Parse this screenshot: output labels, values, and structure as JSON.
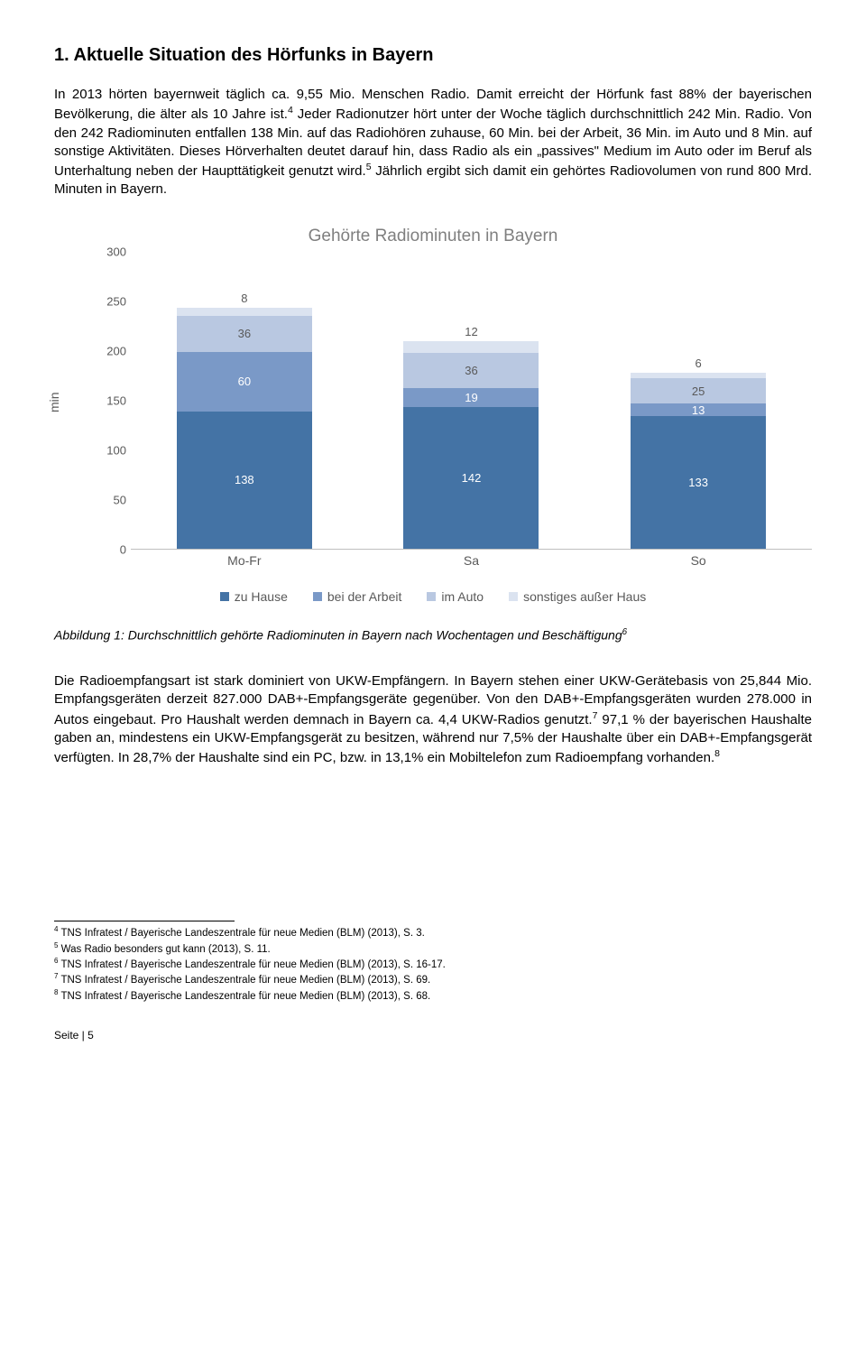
{
  "heading": "1.   Aktuelle Situation des Hörfunks in Bayern",
  "para1": "In 2013 hörten bayernweit täglich ca. 9,55 Mio. Menschen Radio. Damit erreicht der Hörfunk fast 88% der bayerischen Bevölkerung, die älter als 10 Jahre ist.4 Jeder Radionutzer hört unter der Woche täglich durchschnittlich 242 Min. Radio. Von den 242 Radiominuten entfallen 138 Min. auf das Radiohören zuhause, 60 Min. bei der Arbeit, 36 Min. im Auto und 8 Min. auf sonstige Aktivitäten. Dieses Hörverhalten deutet darauf hin, dass Radio als ein „passives\" Medium im Auto oder im Beruf als Unterhaltung neben der Haupttätigkeit genutzt wird.5 Jährlich ergibt sich damit ein gehörtes Radiovolumen von rund 800 Mrd. Minuten in Bayern.",
  "chart": {
    "title": "Gehörte Radiominuten in Bayern",
    "ylabel": "min",
    "ymax": 300,
    "ytick_step": 50,
    "yticks": [
      "0",
      "50",
      "100",
      "150",
      "200",
      "250",
      "300"
    ],
    "categories": [
      "Mo-Fr",
      "Sa",
      "So"
    ],
    "series": [
      {
        "name": "zu Hause",
        "color": "#4473a5"
      },
      {
        "name": "bei der Arbeit",
        "color": "#7a99c7"
      },
      {
        "name": "im Auto",
        "color": "#b9c8e1"
      },
      {
        "name": "sonstiges außer Haus",
        "color": "#dbe3f0"
      }
    ],
    "stacks": [
      [
        {
          "v": 138,
          "c": "#4473a5",
          "t": "138",
          "lc": "#fff"
        },
        {
          "v": 60,
          "c": "#7a99c7",
          "t": "60",
          "lc": "#fff"
        },
        {
          "v": 36,
          "c": "#b9c8e1",
          "t": "36",
          "lc": "#595959"
        },
        {
          "v": 8,
          "c": "#dbe3f0",
          "t": "8",
          "lc": "#595959",
          "above": true
        }
      ],
      [
        {
          "v": 142,
          "c": "#4473a5",
          "t": "142",
          "lc": "#fff"
        },
        {
          "v": 19,
          "c": "#7a99c7",
          "t": "19",
          "lc": "#fff"
        },
        {
          "v": 36,
          "c": "#b9c8e1",
          "t": "36",
          "lc": "#595959"
        },
        {
          "v": 12,
          "c": "#dbe3f0",
          "t": "12",
          "lc": "#595959",
          "above": true
        }
      ],
      [
        {
          "v": 133,
          "c": "#4473a5",
          "t": "133",
          "lc": "#fff"
        },
        {
          "v": 13,
          "c": "#7a99c7",
          "t": "13",
          "lc": "#fff"
        },
        {
          "v": 25,
          "c": "#b9c8e1",
          "t": "25",
          "lc": "#595959"
        },
        {
          "v": 6,
          "c": "#dbe3f0",
          "t": "6",
          "lc": "#595959",
          "above": true
        }
      ]
    ]
  },
  "caption": "Abbildung 1: Durchschnittlich gehörte Radiominuten in Bayern nach Wochentagen und Beschäftigung6",
  "para2": "Die Radioempfangsart ist stark dominiert von UKW-Empfängern. In Bayern stehen einer UKW-Gerätebasis von 25,844 Mio. Empfangsgeräten derzeit 827.000 DAB+-Empfangsgeräte gegenüber. Von den DAB+-Empfangsgeräten wurden 278.000 in Autos eingebaut. Pro Haushalt werden demnach in Bayern ca. 4,4 UKW-Radios genutzt.7 97,1 % der bayerischen Haushalte gaben an, mindestens ein UKW-Empfangsgerät zu besitzen, während nur 7,5% der Haushalte über ein DAB+-Empfangsgerät verfügten. In 28,7% der Haushalte sind ein PC, bzw. in 13,1% ein Mobiltelefon zum Radioempfang vorhanden.8",
  "footnotes": [
    "4 TNS Infratest / Bayerische Landeszentrale für neue Medien (BLM) (2013), S. 3.",
    "5 Was Radio besonders gut kann (2013), S. 11.",
    "6 TNS Infratest / Bayerische Landeszentrale für neue Medien (BLM) (2013), S. 16-17.",
    "7 TNS Infratest / Bayerische Landeszentrale für neue Medien (BLM) (2013), S. 69.",
    "8 TNS Infratest / Bayerische Landeszentrale für neue Medien (BLM) (2013), S. 68."
  ],
  "pagefooter": "Seite | 5"
}
